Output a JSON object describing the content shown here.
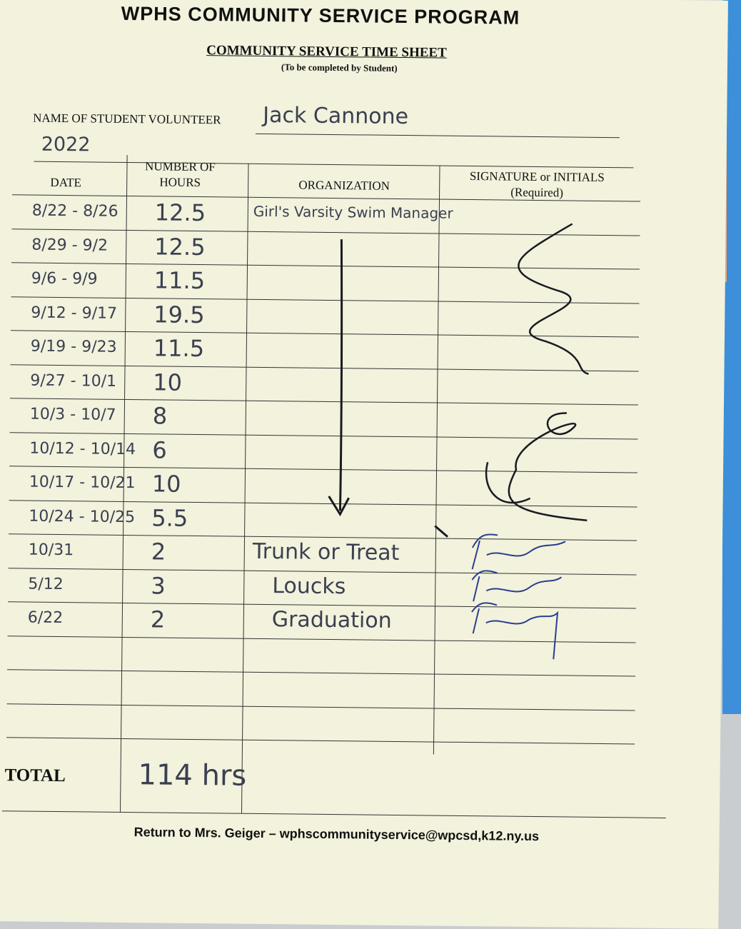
{
  "header": {
    "program_title": "WPHS COMMUNITY SERVICE PROGRAM",
    "sheet_title": "COMMUNITY SERVICE TIME SHEET",
    "instruction": "(To be completed by Student)"
  },
  "student": {
    "name_label": "NAME OF STUDENT VOLUNTEER",
    "name": "Jack Cannone",
    "year": "2022"
  },
  "table": {
    "columns": {
      "date": "DATE",
      "hours": "NUMBER OF HOURS",
      "organization": "ORGANIZATION",
      "signature": "SIGNATURE or INITIALS",
      "signature_note": "(Required)"
    },
    "rows": [
      {
        "date": "8/22 - 8/26",
        "hours": "12.5",
        "organization": "Girl's Varsity Swim Manager"
      },
      {
        "date": "8/29 - 9/2",
        "hours": "12.5",
        "organization": ""
      },
      {
        "date": "9/6 - 9/9",
        "hours": "11.5",
        "organization": ""
      },
      {
        "date": "9/12 - 9/17",
        "hours": "19.5",
        "organization": ""
      },
      {
        "date": "9/19 - 9/23",
        "hours": "11.5",
        "organization": ""
      },
      {
        "date": "9/27 - 10/1",
        "hours": "10",
        "organization": ""
      },
      {
        "date": "10/3 - 10/7",
        "hours": "8",
        "organization": ""
      },
      {
        "date": "10/12 - 10/14",
        "hours": "6",
        "organization": ""
      },
      {
        "date": "10/17 - 10/21",
        "hours": "10",
        "organization": ""
      },
      {
        "date": "10/24 - 10/25",
        "hours": "5.5",
        "organization": ""
      },
      {
        "date": "10/31",
        "hours": "2",
        "organization": "Trunk or Treat"
      },
      {
        "date": "5/12",
        "hours": "3",
        "organization": "Loucks"
      },
      {
        "date": "6/22",
        "hours": "2",
        "organization": "Graduation"
      }
    ],
    "total_label": "TOTAL",
    "total_value": "114 hrs"
  },
  "footer": {
    "return_note": "Return to Mrs. Geiger – wphscommunityservice@wpcsd,k12.ny.us"
  },
  "colors": {
    "paper": "#f2f2dd",
    "ink_pencil": "#3a4050",
    "ink_blue": "#2a3f8f",
    "ink_black": "#1a1a22"
  }
}
